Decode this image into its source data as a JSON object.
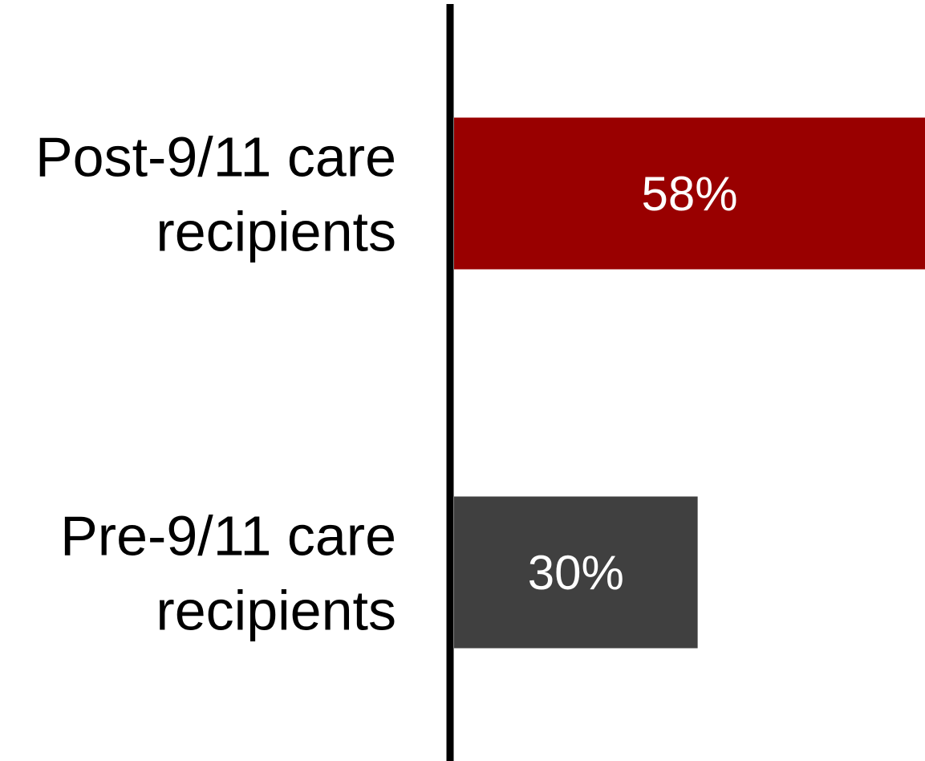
{
  "chart_data": {
    "type": "bar",
    "orientation": "horizontal",
    "categories": [
      [
        "Post-9/11 care",
        "recipients"
      ],
      [
        "Pre-9/11 care",
        "recipients"
      ]
    ],
    "values": [
      58,
      30
    ],
    "value_labels": [
      "58%",
      "30%"
    ],
    "bar_colors": [
      "#990000",
      "#404040"
    ],
    "axis_color": "#000000",
    "value_label_color": "#ffffff",
    "xlim": [
      0,
      58
    ],
    "title": "",
    "xlabel": "",
    "ylabel": "",
    "grid": false,
    "legend": "none"
  }
}
